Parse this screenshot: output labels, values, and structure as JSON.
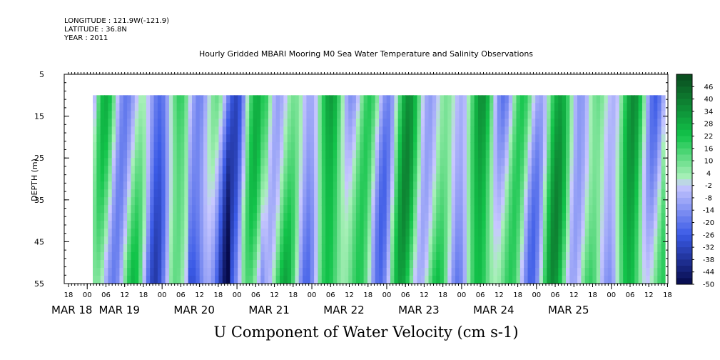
{
  "header": {
    "longitude": "LONGITUDE : 121.9W(-121.9)",
    "latitude": "LATITUDE : 36.8N",
    "year": "YEAR : 2011"
  },
  "chart_data": {
    "type": "heatmap",
    "title": "Hourly Gridded MBARI Mooring M0 Sea Water Temperature and Salinity Observations",
    "xlabel": "U Component of Water Velocity (cm s-1)",
    "ylabel": "DEPTH (m)",
    "ylim": [
      55,
      5
    ],
    "y_ticks": [
      "5",
      "15",
      "25",
      "35",
      "45",
      "55"
    ],
    "data_depth_range": [
      10,
      55
    ],
    "x_hour_ticks": [
      "18",
      "00",
      "06",
      "12",
      "18",
      "00",
      "06",
      "12",
      "18",
      "00",
      "06",
      "12",
      "18",
      "00",
      "06",
      "12",
      "18",
      "00",
      "06",
      "12",
      "18",
      "00",
      "06",
      "12",
      "18",
      "00",
      "06",
      "12",
      "18",
      "00",
      "06",
      "12",
      "18"
    ],
    "x_day_labels": [
      "MAR 18",
      "MAR 19",
      "MAR 20",
      "MAR 21",
      "MAR 22",
      "MAR 23",
      "MAR 24",
      "MAR 25"
    ],
    "colorbar_labels": [
      "46",
      "40",
      "34",
      "28",
      "22",
      "16",
      "10",
      "4",
      "-2",
      "-8",
      "-14",
      "-20",
      "-26",
      "-32",
      "-38",
      "-44",
      "-50"
    ],
    "colorbar_range": [
      -50,
      52
    ],
    "colors": {
      "positive_dark": "#0a4a1e",
      "positive_mid": "#12c44a",
      "positive_light": "#a8f0b8",
      "negative_light": "#c8c8ff",
      "negative_mid": "#3a5ae6",
      "negative_dark": "#060a4a"
    }
  }
}
